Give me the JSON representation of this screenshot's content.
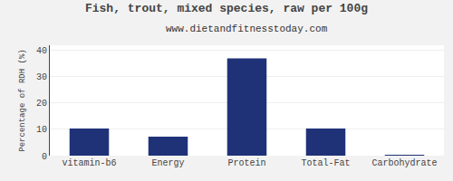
{
  "chart_data": {
    "type": "bar",
    "title": "Fish, trout, mixed species, raw per 100g",
    "subtitle": "www.dietandfitnesstoday.com",
    "categories": [
      "vitamin-b6",
      "Energy",
      "Protein",
      "Total-Fat",
      "Carbohydrate"
    ],
    "values": [
      10.3,
      7.2,
      37.0,
      10.3,
      0.1
    ],
    "color": "#1f3278",
    "ylabel": "Percentage of RDH (%)",
    "ylim": [
      0,
      42
    ],
    "yticks": [
      0,
      10,
      20,
      30,
      40
    ],
    "grid": true
  }
}
